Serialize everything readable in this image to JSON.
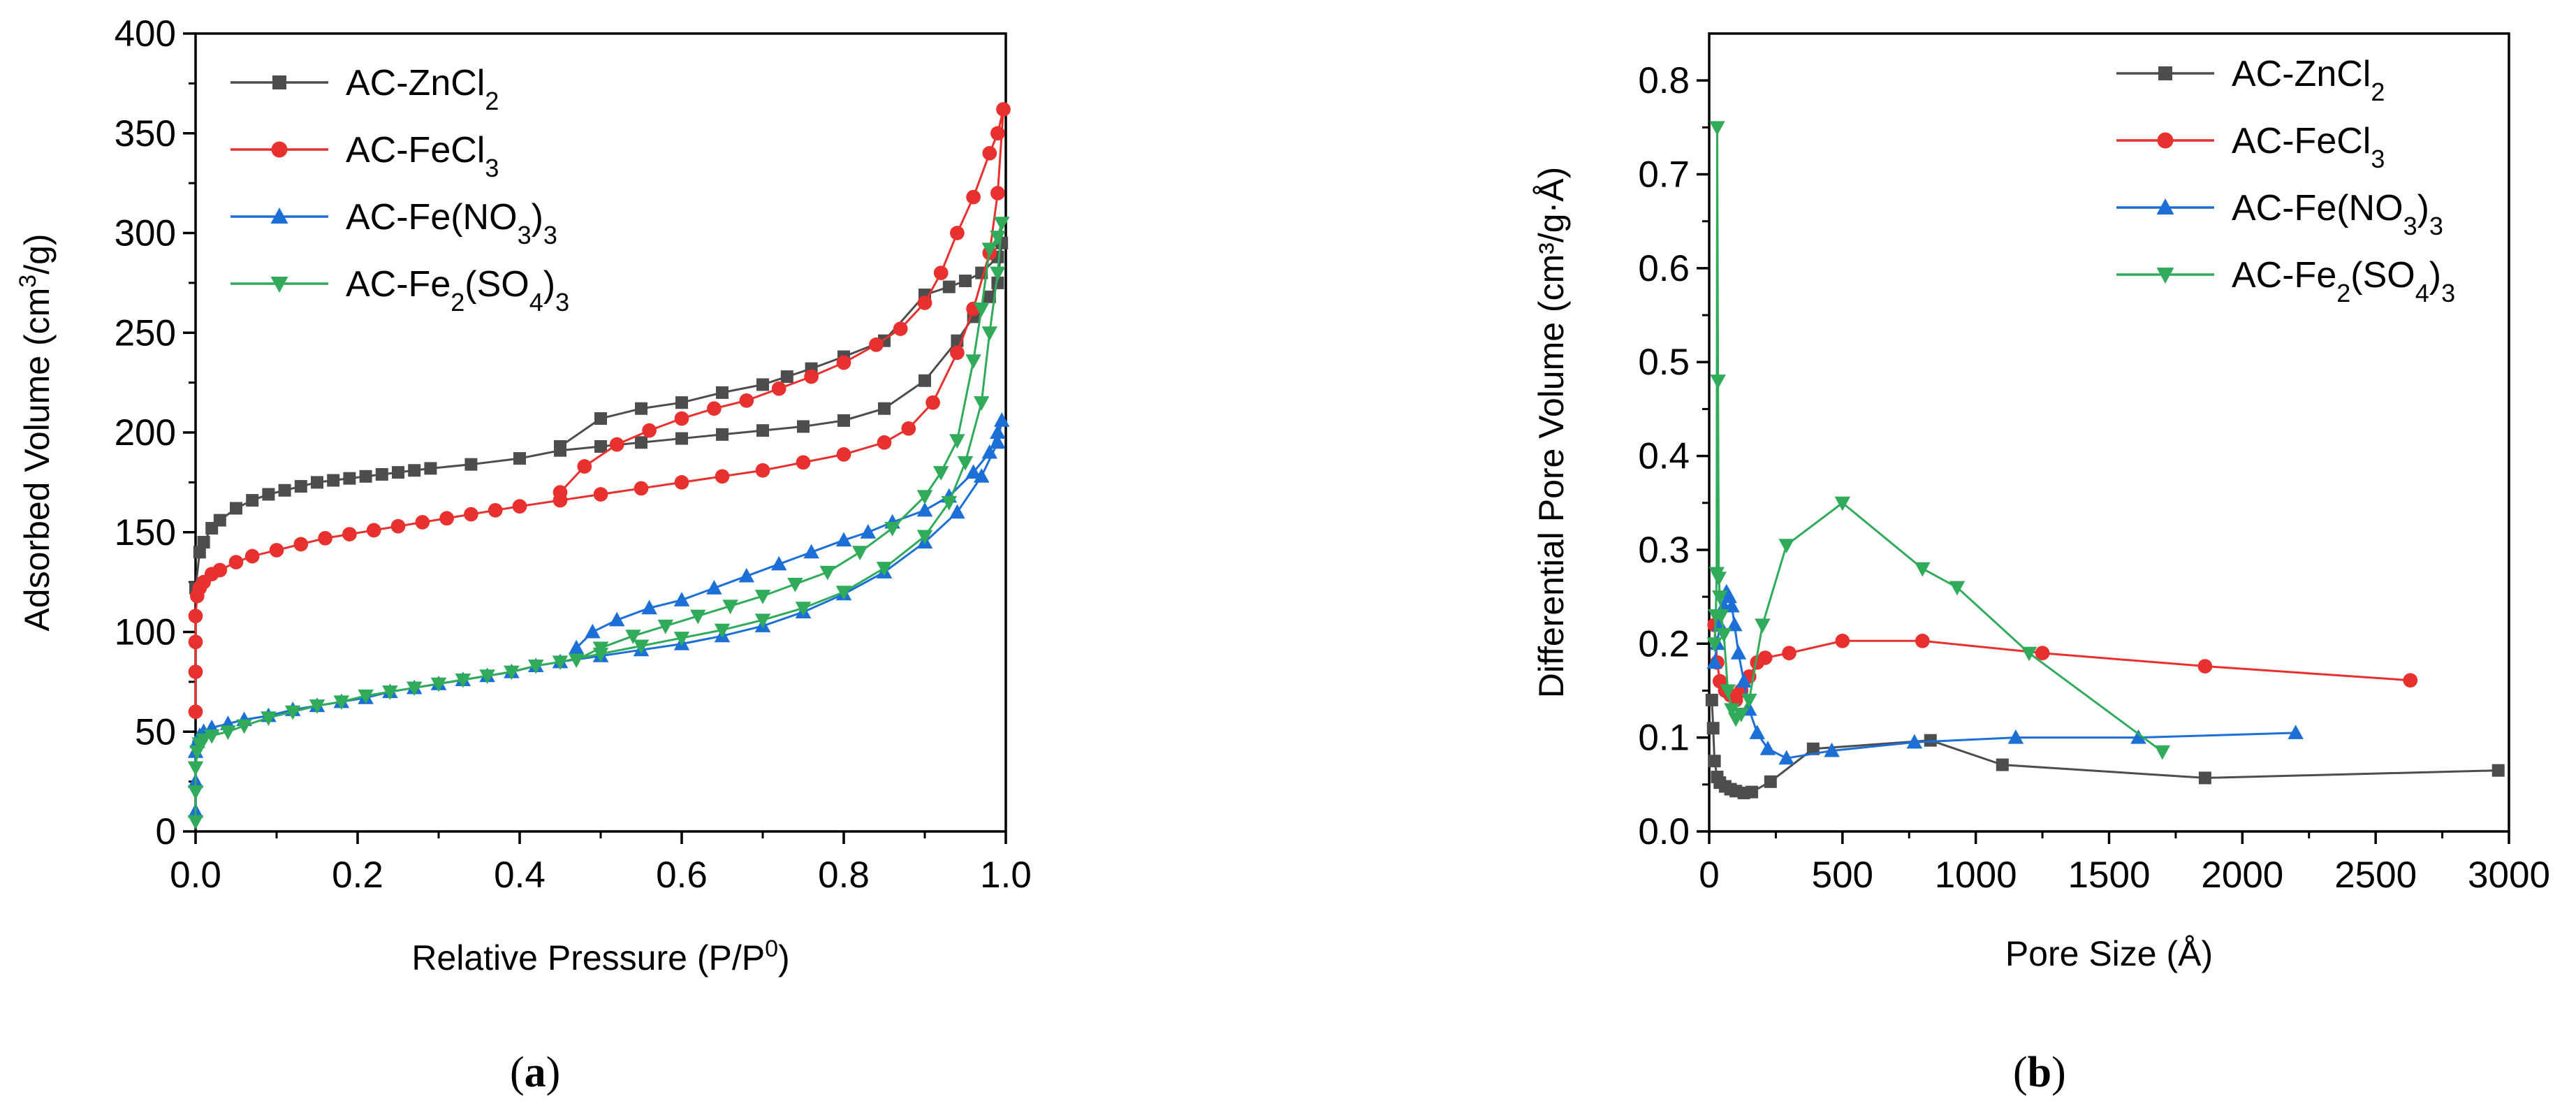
{
  "panels": [
    {
      "label": "a",
      "caption_open": "(",
      "caption_close": ")"
    },
    {
      "label": "b",
      "caption_open": "(",
      "caption_close": ")"
    }
  ],
  "chart_data": [
    {
      "type": "line",
      "panel": "a",
      "title": "",
      "xlabel": "Relative Pressure (P/P",
      "xlabel_sup": "0",
      "xlabel_tail": ")",
      "ylabel": "Adsorbed Volume (cm",
      "ylabel_sup": "3",
      "ylabel_tail": "/g)",
      "xlim": [
        0,
        1
      ],
      "ylim": [
        0,
        400
      ],
      "xticks": [
        "0.0",
        "0.2",
        "0.4",
        "0.6",
        "0.8",
        "1.0"
      ],
      "yticks": [
        "0",
        "50",
        "100",
        "150",
        "200",
        "250",
        "300",
        "350",
        "400"
      ],
      "legend_position": "top-left",
      "series": [
        {
          "name": "AC-ZnCl",
          "sub": "2",
          "tail": "",
          "color": "#4d4d4d",
          "marker": "square",
          "x": [
            0.0,
            0.005,
            0.01,
            0.02,
            0.03,
            0.05,
            0.07,
            0.09,
            0.11,
            0.13,
            0.15,
            0.17,
            0.19,
            0.21,
            0.23,
            0.25,
            0.27,
            0.29,
            0.34,
            0.4,
            0.45,
            0.5,
            0.55,
            0.6,
            0.65,
            0.7,
            0.75,
            0.8,
            0.85,
            0.9,
            0.94,
            0.96,
            0.98,
            0.99,
            0.995,
            0.99,
            0.97,
            0.95,
            0.93,
            0.9,
            0.85,
            0.8,
            0.76,
            0.73,
            0.7,
            0.65,
            0.6,
            0.55,
            0.5,
            0.45
          ],
          "y": [
            122,
            140,
            145,
            152,
            156,
            162,
            166,
            169,
            171,
            173,
            175,
            176,
            177,
            178,
            179,
            180,
            181,
            182,
            184,
            187,
            191,
            193,
            195,
            197,
            199,
            201,
            203,
            206,
            212,
            226,
            246,
            258,
            268,
            275,
            295,
            288,
            280,
            276,
            273,
            269,
            246,
            238,
            232,
            228,
            224,
            220,
            215,
            212,
            207,
            193
          ]
        },
        {
          "name": "AC-FeCl",
          "sub": "3",
          "tail": "",
          "color": "#e8312f",
          "marker": "circle",
          "x": [
            0.0,
            0.0,
            0.0,
            0.0,
            0.002,
            0.005,
            0.01,
            0.02,
            0.03,
            0.05,
            0.07,
            0.1,
            0.13,
            0.16,
            0.19,
            0.22,
            0.25,
            0.28,
            0.31,
            0.34,
            0.37,
            0.4,
            0.45,
            0.5,
            0.55,
            0.6,
            0.65,
            0.7,
            0.75,
            0.8,
            0.85,
            0.88,
            0.91,
            0.94,
            0.96,
            0.98,
            0.99,
            0.997,
            0.99,
            0.98,
            0.96,
            0.94,
            0.92,
            0.9,
            0.87,
            0.84,
            0.8,
            0.76,
            0.72,
            0.68,
            0.64,
            0.6,
            0.56,
            0.52,
            0.48,
            0.45
          ],
          "y": [
            60,
            80,
            95,
            108,
            118,
            122,
            125,
            129,
            131,
            135,
            138,
            141,
            144,
            147,
            149,
            151,
            153,
            155,
            157,
            159,
            161,
            163,
            166,
            169,
            172,
            175,
            178,
            181,
            185,
            189,
            195,
            202,
            215,
            240,
            262,
            290,
            320,
            362,
            350,
            340,
            318,
            300,
            280,
            265,
            252,
            244,
            235,
            228,
            222,
            216,
            212,
            207,
            201,
            194,
            183,
            170
          ]
        },
        {
          "name": "AC-Fe(NO",
          "sub": "3",
          "tail": ")3",
          "color": "#1b6fd6",
          "marker": "triangle-up",
          "x": [
            0.0,
            0.0,
            0.0,
            0.002,
            0.005,
            0.01,
            0.02,
            0.04,
            0.06,
            0.09,
            0.12,
            0.15,
            0.18,
            0.21,
            0.24,
            0.27,
            0.3,
            0.33,
            0.36,
            0.39,
            0.42,
            0.45,
            0.5,
            0.55,
            0.6,
            0.65,
            0.7,
            0.75,
            0.8,
            0.85,
            0.9,
            0.94,
            0.97,
            0.99,
            0.995,
            0.99,
            0.98,
            0.96,
            0.93,
            0.9,
            0.86,
            0.83,
            0.8,
            0.76,
            0.72,
            0.68,
            0.64,
            0.6,
            0.56,
            0.52,
            0.49,
            0.47
          ],
          "y": [
            10,
            25,
            40,
            45,
            48,
            50,
            52,
            54,
            56,
            58,
            61,
            63,
            65,
            67,
            70,
            72,
            74,
            76,
            78,
            80,
            83,
            85,
            88,
            91,
            94,
            98,
            103,
            110,
            119,
            130,
            145,
            160,
            178,
            195,
            206,
            200,
            190,
            180,
            168,
            161,
            155,
            150,
            146,
            140,
            134,
            128,
            122,
            116,
            112,
            106,
            100,
            92
          ]
        },
        {
          "name": "AC-Fe",
          "sub": "2",
          "tail": "(SO4)3",
          "color": "#2fab5a",
          "marker": "triangle-down",
          "x": [
            0.0,
            0.0,
            0.0,
            0.002,
            0.005,
            0.01,
            0.02,
            0.04,
            0.06,
            0.09,
            0.12,
            0.15,
            0.18,
            0.21,
            0.24,
            0.27,
            0.3,
            0.33,
            0.36,
            0.39,
            0.42,
            0.45,
            0.5,
            0.55,
            0.6,
            0.65,
            0.7,
            0.75,
            0.8,
            0.85,
            0.9,
            0.93,
            0.95,
            0.97,
            0.98,
            0.99,
            0.995,
            0.99,
            0.98,
            0.97,
            0.96,
            0.94,
            0.92,
            0.9,
            0.86,
            0.82,
            0.78,
            0.74,
            0.7,
            0.66,
            0.62,
            0.58,
            0.54,
            0.5,
            0.47
          ],
          "y": [
            5,
            20,
            32,
            40,
            44,
            46,
            48,
            50,
            53,
            57,
            60,
            63,
            65,
            68,
            70,
            72,
            74,
            76,
            78,
            80,
            83,
            85,
            89,
            93,
            97,
            101,
            106,
            112,
            120,
            132,
            148,
            165,
            185,
            215,
            250,
            280,
            305,
            298,
            292,
            262,
            236,
            196,
            180,
            168,
            152,
            140,
            130,
            124,
            118,
            113,
            108,
            103,
            98,
            92,
            86
          ]
        }
      ]
    },
    {
      "type": "line",
      "panel": "b",
      "title": "",
      "xlabel": "Pore Size (Å)",
      "ylabel": "Differential Pore Volume (cm³/g·Å)",
      "xlim": [
        0,
        3000
      ],
      "ylim": [
        0,
        0.85
      ],
      "xticks": [
        "0",
        "500",
        "1000",
        "1500",
        "2000",
        "2500",
        "3000"
      ],
      "yticks": [
        "0.0",
        "0.1",
        "0.2",
        "0.3",
        "0.4",
        "0.5",
        "0.6",
        "0.7",
        "0.8"
      ],
      "legend_position": "top-right",
      "series": [
        {
          "name": "AC-ZnCl",
          "sub": "2",
          "tail": "",
          "color": "#4d4d4d",
          "marker": "square",
          "x": [
            10,
            15,
            20,
            30,
            40,
            60,
            80,
            100,
            130,
            160,
            230,
            390,
            830,
            1100,
            1860,
            2960
          ],
          "y": [
            0.14,
            0.11,
            0.075,
            0.058,
            0.052,
            0.048,
            0.045,
            0.043,
            0.041,
            0.042,
            0.053,
            0.088,
            0.097,
            0.071,
            0.057,
            0.065
          ]
        },
        {
          "name": "AC-FeCl",
          "sub": "3",
          "tail": "",
          "color": "#e8312f",
          "marker": "circle",
          "x": [
            20,
            30,
            40,
            60,
            80,
            100,
            120,
            150,
            180,
            210,
            300,
            500,
            800,
            1250,
            1860,
            2630
          ],
          "y": [
            0.22,
            0.18,
            0.16,
            0.15,
            0.145,
            0.14,
            0.15,
            0.165,
            0.18,
            0.185,
            0.19,
            0.203,
            0.203,
            0.19,
            0.176,
            0.161
          ]
        },
        {
          "name": "AC-Fe(NO",
          "sub": "3",
          "tail": ")3",
          "color": "#1b6fd6",
          "marker": "triangle-up",
          "x": [
            20,
            30,
            40,
            55,
            65,
            75,
            85,
            95,
            110,
            130,
            150,
            180,
            220,
            290,
            460,
            770,
            1150,
            1610,
            2200
          ],
          "y": [
            0.18,
            0.2,
            0.22,
            0.24,
            0.255,
            0.25,
            0.24,
            0.22,
            0.19,
            0.16,
            0.13,
            0.105,
            0.088,
            0.078,
            0.086,
            0.095,
            0.1,
            0.1,
            0.105
          ]
        },
        {
          "name": "AC-Fe",
          "sub": "2",
          "tail": "(SO4)3",
          "color": "#2fab5a",
          "marker": "triangle-down",
          "x": [
            20,
            25,
            28,
            30,
            33,
            36,
            40,
            45,
            55,
            70,
            85,
            100,
            120,
            150,
            200,
            290,
            500,
            800,
            930,
            1200,
            1700
          ],
          "y": [
            0.2,
            0.23,
            0.275,
            0.75,
            0.48,
            0.27,
            0.25,
            0.23,
            0.21,
            0.15,
            0.13,
            0.12,
            0.125,
            0.14,
            0.22,
            0.305,
            0.35,
            0.28,
            0.26,
            0.19,
            0.085
          ]
        }
      ]
    }
  ]
}
